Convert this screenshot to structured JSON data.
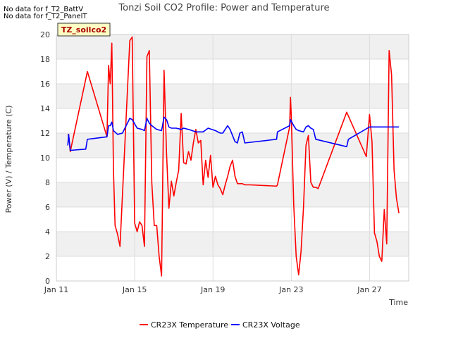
{
  "notes": [
    "No data for f_T2_BattV",
    "No data for f_T2_PanelT"
  ],
  "chart_data": {
    "type": "line",
    "title": "Tonzi Soil CO2 Profile: Power and Temperature",
    "xlabel": "Time",
    "ylabel": "Power (V) / Temperature (C)",
    "site_label": "TZ_soilco2",
    "ylim": [
      0,
      20
    ],
    "xlim": [
      "2024-01-11",
      "2024-01-29"
    ],
    "yticks": [
      0,
      2,
      4,
      6,
      8,
      10,
      12,
      14,
      16,
      18,
      20
    ],
    "xticks": [
      {
        "date": "2024-01-11",
        "label": "Jan 11"
      },
      {
        "date": "2024-01-15",
        "label": "Jan 15"
      },
      {
        "date": "2024-01-19",
        "label": "Jan 19"
      },
      {
        "date": "2024-01-23",
        "label": "Jan 23"
      },
      {
        "date": "2024-01-27",
        "label": "Jan 27"
      }
    ],
    "grid": true,
    "legend_position": "bottom",
    "series": [
      {
        "name": "CR23X Temperature",
        "color": "#ff0000",
        "x": [
          "2024-01-11 14:00",
          "2024-01-11 15:00",
          "2024-01-11 17:00",
          "2024-01-12 14:00",
          "2024-01-13 14:00",
          "2024-01-13 16:00",
          "2024-01-13 18:00",
          "2024-01-13 20:00",
          "2024-01-13 22:00",
          "2024-01-14 00:00",
          "2024-01-14 03:00",
          "2024-01-14 06:00",
          "2024-01-14 18:00",
          "2024-01-14 21:00",
          "2024-01-15 00:00",
          "2024-01-15 03:00",
          "2024-01-15 06:00",
          "2024-01-15 09:00",
          "2024-01-15 12:00",
          "2024-01-15 15:00",
          "2024-01-15 18:00",
          "2024-01-15 21:00",
          "2024-01-16 00:00",
          "2024-01-16 03:00",
          "2024-01-16 06:00",
          "2024-01-16 09:00",
          "2024-01-16 12:00",
          "2024-01-16 15:00",
          "2024-01-16 18:00",
          "2024-01-16 21:00",
          "2024-01-17 00:00",
          "2024-01-17 03:00",
          "2024-01-17 06:00",
          "2024-01-17 09:00",
          "2024-01-17 12:00",
          "2024-01-17 15:00",
          "2024-01-17 18:00",
          "2024-01-17 21:00",
          "2024-01-18 00:00",
          "2024-01-18 03:00",
          "2024-01-18 06:00",
          "2024-01-18 09:00",
          "2024-01-18 12:00",
          "2024-01-18 15:00",
          "2024-01-18 18:00",
          "2024-01-18 21:00",
          "2024-01-19 00:00",
          "2024-01-19 03:00",
          "2024-01-19 06:00",
          "2024-01-19 09:00",
          "2024-01-19 12:00",
          "2024-01-19 15:00",
          "2024-01-19 18:00",
          "2024-01-19 21:00",
          "2024-01-20 00:00",
          "2024-01-20 03:00",
          "2024-01-20 06:00",
          "2024-01-20 09:00",
          "2024-01-20 12:00",
          "2024-01-20 15:00",
          "2024-01-20 18:00",
          "2024-01-20 21:00",
          "2024-01-22 06:00",
          "2024-01-22 07:00",
          "2024-01-22 22:00",
          "2024-01-22 23:00",
          "2024-01-23 00:00",
          "2024-01-23 03:00",
          "2024-01-23 06:00",
          "2024-01-23 09:00",
          "2024-01-23 12:00",
          "2024-01-23 15:00",
          "2024-01-23 18:00",
          "2024-01-23 21:00",
          "2024-01-24 00:00",
          "2024-01-24 03:00",
          "2024-01-24 06:00",
          "2024-01-24 09:00",
          "2024-01-25 20:00",
          "2024-01-26 20:00",
          "2024-01-27 00:00",
          "2024-01-27 03:00",
          "2024-01-27 06:00",
          "2024-01-27 09:00",
          "2024-01-27 12:00",
          "2024-01-27 15:00",
          "2024-01-27 18:00",
          "2024-01-27 21:00",
          "2024-01-28 00:00",
          "2024-01-28 03:00",
          "2024-01-28 06:00",
          "2024-01-28 09:00",
          "2024-01-28 12:00"
        ],
        "y": [
          11.8,
          11.9,
          10.5,
          17.0,
          11.7,
          17.5,
          16.0,
          19.3,
          9.0,
          4.5,
          3.8,
          2.8,
          19.5,
          19.8,
          4.7,
          4.0,
          4.8,
          4.5,
          2.8,
          18.2,
          18.7,
          8.0,
          4.5,
          4.5,
          2.0,
          0.4,
          17.1,
          10.4,
          5.9,
          8.1,
          6.9,
          8.0,
          9.0,
          13.6,
          9.6,
          9.5,
          10.5,
          9.8,
          11.2,
          12.3,
          11.2,
          11.4,
          7.8,
          9.8,
          8.4,
          10.2,
          7.6,
          8.5,
          7.8,
          7.5,
          7.0,
          7.8,
          8.5,
          9.3,
          9.8,
          8.5,
          7.9,
          7.9,
          7.9,
          7.8,
          7.8,
          7.8,
          7.7,
          7.8,
          12.5,
          14.9,
          13.5,
          6.2,
          2.0,
          0.5,
          2.4,
          6.0,
          11.0,
          11.8,
          8.0,
          7.6,
          7.6,
          7.5,
          13.7,
          10.1,
          13.5,
          11.3,
          3.9,
          3.2,
          2.0,
          1.6,
          5.8,
          3.0,
          18.7,
          16.7,
          9.0,
          6.7,
          5.5
        ]
      },
      {
        "name": "CR23X Voltage",
        "color": "#0000ff",
        "x": [
          "2024-01-11 14:00",
          "2024-01-11 15:00",
          "2024-01-11 17:00",
          "2024-01-12 12:00",
          "2024-01-12 14:00",
          "2024-01-13 14:00",
          "2024-01-13 16:00",
          "2024-01-13 18:00",
          "2024-01-13 20:00",
          "2024-01-13 22:00",
          "2024-01-14 03:00",
          "2024-01-14 09:00",
          "2024-01-14 18:00",
          "2024-01-14 21:00",
          "2024-01-15 03:00",
          "2024-01-15 09:00",
          "2024-01-15 12:00",
          "2024-01-15 15:00",
          "2024-01-15 18:00",
          "2024-01-15 21:00",
          "2024-01-16 03:00",
          "2024-01-16 09:00",
          "2024-01-16 12:00",
          "2024-01-16 15:00",
          "2024-01-16 18:00",
          "2024-01-16 21:00",
          "2024-01-17 03:00",
          "2024-01-17 09:00",
          "2024-01-17 12:00",
          "2024-01-17 18:00",
          "2024-01-18 03:00",
          "2024-01-18 09:00",
          "2024-01-18 12:00",
          "2024-01-18 18:00",
          "2024-01-19 03:00",
          "2024-01-19 09:00",
          "2024-01-19 12:00",
          "2024-01-19 18:00",
          "2024-01-19 21:00",
          "2024-01-20 03:00",
          "2024-01-20 06:00",
          "2024-01-20 09:00",
          "2024-01-20 12:00",
          "2024-01-20 15:00",
          "2024-01-22 06:00",
          "2024-01-22 07:00",
          "2024-01-22 22:00",
          "2024-01-22 23:00",
          "2024-01-23 03:00",
          "2024-01-23 06:00",
          "2024-01-23 09:00",
          "2024-01-23 15:00",
          "2024-01-23 18:00",
          "2024-01-23 21:00",
          "2024-01-24 00:00",
          "2024-01-24 03:00",
          "2024-01-24 06:00",
          "2024-01-25 20:00",
          "2024-01-25 22:00",
          "2024-01-27 00:00",
          "2024-01-27 12:00",
          "2024-01-28 00:00",
          "2024-01-28 12:00"
        ],
        "y": [
          11.0,
          11.9,
          10.6,
          10.7,
          11.5,
          11.7,
          12.6,
          12.6,
          12.9,
          12.2,
          11.9,
          12.0,
          13.2,
          13.1,
          12.4,
          12.3,
          12.2,
          13.2,
          12.8,
          12.6,
          12.3,
          12.2,
          13.3,
          13.1,
          12.5,
          12.4,
          12.4,
          12.3,
          12.4,
          12.3,
          12.1,
          12.1,
          12.1,
          12.4,
          12.2,
          12.0,
          12.0,
          12.6,
          12.3,
          11.3,
          11.2,
          12.0,
          12.1,
          11.2,
          11.5,
          12.1,
          12.6,
          13.1,
          12.6,
          12.3,
          12.2,
          12.1,
          12.5,
          12.6,
          12.4,
          12.3,
          11.5,
          10.9,
          11.5,
          12.5,
          12.5,
          12.5,
          12.5
        ]
      }
    ]
  }
}
